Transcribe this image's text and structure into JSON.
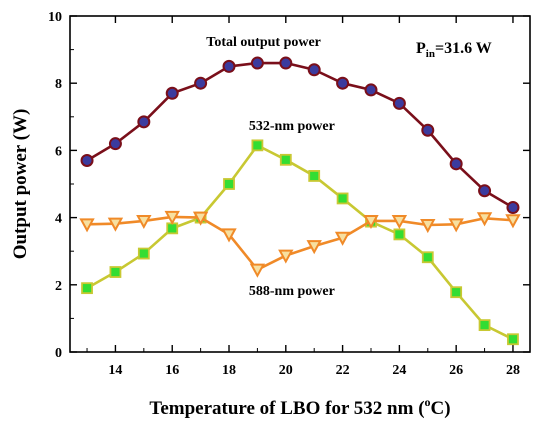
{
  "chart_data": {
    "type": "line",
    "xlabel": "Temperature of LBO for 532 nm (",
    "xlabel_sup": "o",
    "xlabel_tail": "C)",
    "ylabel": "Output power (W)",
    "xlim": [
      12.4,
      28.6
    ],
    "ylim": [
      0,
      10
    ],
    "xticks": [
      14,
      16,
      18,
      20,
      22,
      24,
      26,
      28
    ],
    "yticks": [
      0,
      2,
      4,
      6,
      8,
      10
    ],
    "grid": false,
    "x": [
      13,
      14,
      15,
      16,
      17,
      18,
      19,
      20,
      21,
      22,
      23,
      24,
      25,
      26,
      27,
      28
    ],
    "series": [
      {
        "name": "Total output power",
        "line_color": "#7a0f1a",
        "marker": "circle",
        "marker_fill": "#3b3b9e",
        "marker_stroke": "#7a0f1a",
        "values": [
          5.7,
          6.2,
          6.85,
          7.7,
          8.0,
          8.5,
          8.6,
          8.6,
          8.4,
          8.0,
          7.8,
          7.4,
          6.6,
          5.6,
          4.8,
          4.3
        ]
      },
      {
        "name": "532-nm power",
        "line_color": "#c8c832",
        "marker": "square",
        "marker_fill": "#33dd33",
        "marker_stroke": "#c8c832",
        "values": [
          1.9,
          2.38,
          2.93,
          3.68,
          4.0,
          5.0,
          6.15,
          5.72,
          5.24,
          4.57,
          3.88,
          3.5,
          2.82,
          1.78,
          0.8,
          0.38
        ]
      },
      {
        "name": "588-nm power",
        "line_color": "#f08a28",
        "marker": "triangle-down",
        "marker_fill": "#f7e0a0",
        "marker_stroke": "#f08a28",
        "values": [
          3.8,
          3.82,
          3.9,
          4.02,
          4.0,
          3.5,
          2.45,
          2.87,
          3.15,
          3.4,
          3.9,
          3.9,
          3.78,
          3.8,
          3.98,
          3.92
        ]
      }
    ],
    "annotations": [
      {
        "text": "Total output power",
        "x": 17.2,
        "y": 9.1
      },
      {
        "text": "532-nm power",
        "x": 18.7,
        "y": 6.6
      },
      {
        "text": "588-nm power",
        "x": 18.7,
        "y": 1.7
      }
    ],
    "pin_label": {
      "main": "P",
      "sub": "in",
      "tail": "=31.6 W"
    }
  }
}
